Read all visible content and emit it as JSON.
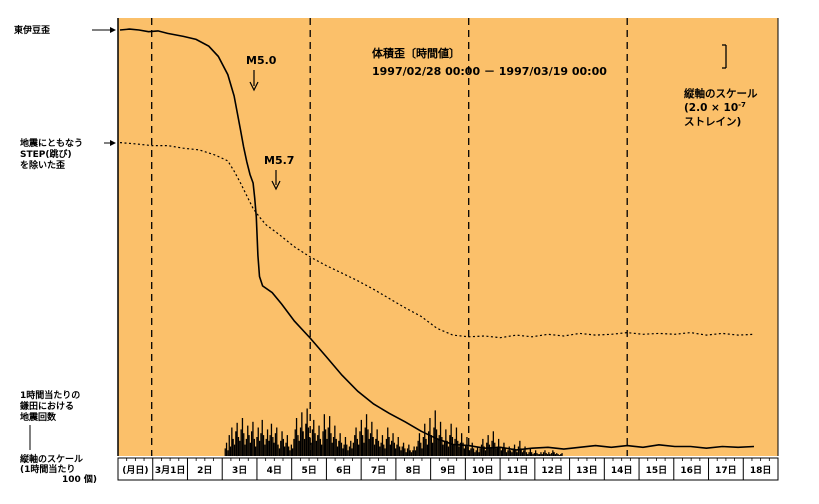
{
  "chart_data": {
    "type": "line",
    "title": "体積歪〔時間値〕",
    "period": "1997/02/28 00:00 － 1997/03/19 00:00",
    "colors": {
      "background": "#fbc06a",
      "line": "#000000"
    },
    "x_range_days": [
      0,
      20
    ],
    "y_scale_label": [
      "縦軸のスケール",
      "(2.0 × 10",
      "-7",
      "ストレイン)"
    ],
    "left_labels": {
      "strain": "東伊豆歪",
      "corrected": [
        "地震にともなう",
        "STEP(跳び)",
        "を除いた歪"
      ],
      "counts": [
        "1時間当たりの",
        "鎌田における",
        "地震回数"
      ],
      "count_scale": [
        "縦軸のスケール",
        "(1時間当たり",
        "100 個)"
      ]
    },
    "annotations": [
      "M5.0",
      "M5.7"
    ],
    "day_labels": [
      "(月日)",
      "3月1日",
      "2日",
      "3日",
      "4日",
      "5日",
      "6日",
      "7日",
      "8日",
      "9日",
      "10日",
      "11日",
      "12日",
      "13日",
      "14日",
      "15日",
      "16日",
      "17日",
      "18日"
    ],
    "dashed_day_lines": [
      1,
      6,
      11,
      16
    ],
    "series": [
      {
        "name": "東伊豆歪",
        "points": [
          [
            0,
            1.0
          ],
          [
            0.3,
            1.002
          ],
          [
            0.6,
            1.0
          ],
          [
            0.9,
            0.996
          ],
          [
            1.2,
            0.998
          ],
          [
            1.5,
            0.992
          ],
          [
            2.0,
            0.985
          ],
          [
            2.4,
            0.978
          ],
          [
            2.8,
            0.962
          ],
          [
            3.1,
            0.938
          ],
          [
            3.4,
            0.895
          ],
          [
            3.6,
            0.845
          ],
          [
            3.7,
            0.805
          ],
          [
            3.8,
            0.765
          ],
          [
            3.9,
            0.725
          ],
          [
            4.0,
            0.69
          ],
          [
            4.1,
            0.66
          ],
          [
            4.2,
            0.64
          ],
          [
            4.25,
            0.605
          ],
          [
            4.3,
            0.56
          ],
          [
            4.35,
            0.47
          ],
          [
            4.4,
            0.42
          ],
          [
            4.5,
            0.398
          ],
          [
            4.8,
            0.382
          ],
          [
            5.1,
            0.355
          ],
          [
            5.5,
            0.315
          ],
          [
            6.0,
            0.275
          ],
          [
            6.5,
            0.232
          ],
          [
            7.0,
            0.188
          ],
          [
            7.5,
            0.15
          ],
          [
            8.0,
            0.12
          ],
          [
            8.5,
            0.098
          ],
          [
            9.0,
            0.078
          ],
          [
            9.5,
            0.056
          ],
          [
            10.0,
            0.038
          ],
          [
            10.5,
            0.025
          ],
          [
            11.0,
            0.022
          ],
          [
            11.5,
            0.016
          ],
          [
            12.0,
            0.018
          ],
          [
            12.5,
            0.012
          ],
          [
            13.0,
            0.016
          ],
          [
            13.5,
            0.018
          ],
          [
            14.0,
            0.014
          ],
          [
            14.5,
            0.018
          ],
          [
            15.0,
            0.022
          ],
          [
            15.5,
            0.018
          ],
          [
            16.0,
            0.022
          ],
          [
            16.5,
            0.018
          ],
          [
            17.0,
            0.024
          ],
          [
            17.5,
            0.02
          ],
          [
            18.0,
            0.02
          ],
          [
            18.5,
            0.016
          ],
          [
            19.0,
            0.02
          ],
          [
            19.5,
            0.018
          ],
          [
            20.0,
            0.02
          ]
        ]
      },
      {
        "name": "地震にともなうSTEP(跳び)を除いた歪",
        "dashed": true,
        "points": [
          [
            0,
            0.735
          ],
          [
            0.5,
            0.732
          ],
          [
            1.0,
            0.728
          ],
          [
            1.5,
            0.728
          ],
          [
            2.0,
            0.722
          ],
          [
            2.5,
            0.718
          ],
          [
            3.0,
            0.706
          ],
          [
            3.4,
            0.692
          ],
          [
            3.6,
            0.668
          ],
          [
            3.8,
            0.64
          ],
          [
            4.0,
            0.61
          ],
          [
            4.2,
            0.58
          ],
          [
            4.4,
            0.56
          ],
          [
            4.6,
            0.542
          ],
          [
            5.0,
            0.52
          ],
          [
            5.5,
            0.49
          ],
          [
            6.0,
            0.466
          ],
          [
            6.5,
            0.446
          ],
          [
            7.0,
            0.428
          ],
          [
            7.5,
            0.41
          ],
          [
            8.0,
            0.39
          ],
          [
            8.5,
            0.368
          ],
          [
            9.0,
            0.346
          ],
          [
            9.5,
            0.326
          ],
          [
            10.0,
            0.298
          ],
          [
            10.5,
            0.282
          ],
          [
            11.0,
            0.278
          ],
          [
            11.5,
            0.28
          ],
          [
            12.0,
            0.276
          ],
          [
            12.5,
            0.282
          ],
          [
            13.0,
            0.278
          ],
          [
            13.5,
            0.284
          ],
          [
            14.0,
            0.28
          ],
          [
            14.5,
            0.286
          ],
          [
            15.0,
            0.282
          ],
          [
            15.5,
            0.284
          ],
          [
            16.0,
            0.288
          ],
          [
            16.5,
            0.284
          ],
          [
            17.0,
            0.286
          ],
          [
            17.5,
            0.284
          ],
          [
            18.0,
            0.288
          ],
          [
            18.5,
            0.282
          ],
          [
            19.0,
            0.286
          ],
          [
            19.5,
            0.282
          ],
          [
            20.0,
            0.284
          ]
        ]
      }
    ],
    "hourly_counts_per_hour": {
      "start_day": 3.3,
      "step_hours": 1,
      "values": [
        8,
        14,
        6,
        22,
        10,
        30,
        18,
        12,
        26,
        35,
        20,
        16,
        28,
        40,
        24,
        12,
        18,
        32,
        22,
        14,
        26,
        36,
        18,
        10,
        20,
        30,
        16,
        24,
        38,
        22,
        12,
        18,
        28,
        16,
        22,
        34,
        20,
        14,
        24,
        30,
        12,
        8,
        16,
        26,
        18,
        10,
        14,
        22,
        10,
        6,
        12,
        8,
        18,
        28,
        40,
        22,
        16,
        30,
        46,
        26,
        18,
        34,
        50,
        30,
        20,
        14,
        28,
        38,
        24,
        16,
        22,
        32,
        18,
        12,
        26,
        44,
        28,
        18,
        30,
        42,
        24,
        14,
        20,
        32,
        18,
        10,
        16,
        24,
        14,
        8,
        12,
        20,
        12,
        6,
        10,
        16,
        8,
        14,
        22,
        30,
        18,
        12,
        26,
        38,
        22,
        14,
        30,
        44,
        28,
        18,
        24,
        36,
        20,
        12,
        18,
        28,
        16,
        10,
        14,
        22,
        12,
        8,
        18,
        30,
        20,
        12,
        16,
        24,
        14,
        8,
        12,
        20,
        10,
        6,
        10,
        14,
        8,
        4,
        8,
        12,
        6,
        4,
        6,
        10,
        6,
        10,
        16,
        24,
        14,
        8,
        20,
        34,
        18,
        12,
        26,
        40,
        22,
        14,
        30,
        48,
        28,
        18,
        22,
        36,
        20,
        12,
        16,
        28,
        16,
        10,
        22,
        34,
        20,
        12,
        18,
        30,
        16,
        10,
        14,
        24,
        14,
        8,
        12,
        20,
        10,
        6,
        8,
        14,
        8,
        4,
        6,
        10,
        4,
        8,
        12,
        18,
        10,
        6,
        14,
        22,
        12,
        8,
        16,
        26,
        14,
        8,
        10,
        18,
        10,
        6,
        8,
        14,
        8,
        4,
        6,
        10,
        6,
        4,
        8,
        12,
        6,
        4,
        10,
        16,
        8,
        4,
        6,
        10,
        4,
        2,
        4,
        8,
        4,
        2,
        3,
        6,
        3,
        2,
        2,
        4,
        2,
        4,
        6,
        3,
        2,
        4,
        2,
        3,
        6,
        4,
        2,
        3,
        2,
        1,
        2,
        3
      ]
    }
  }
}
